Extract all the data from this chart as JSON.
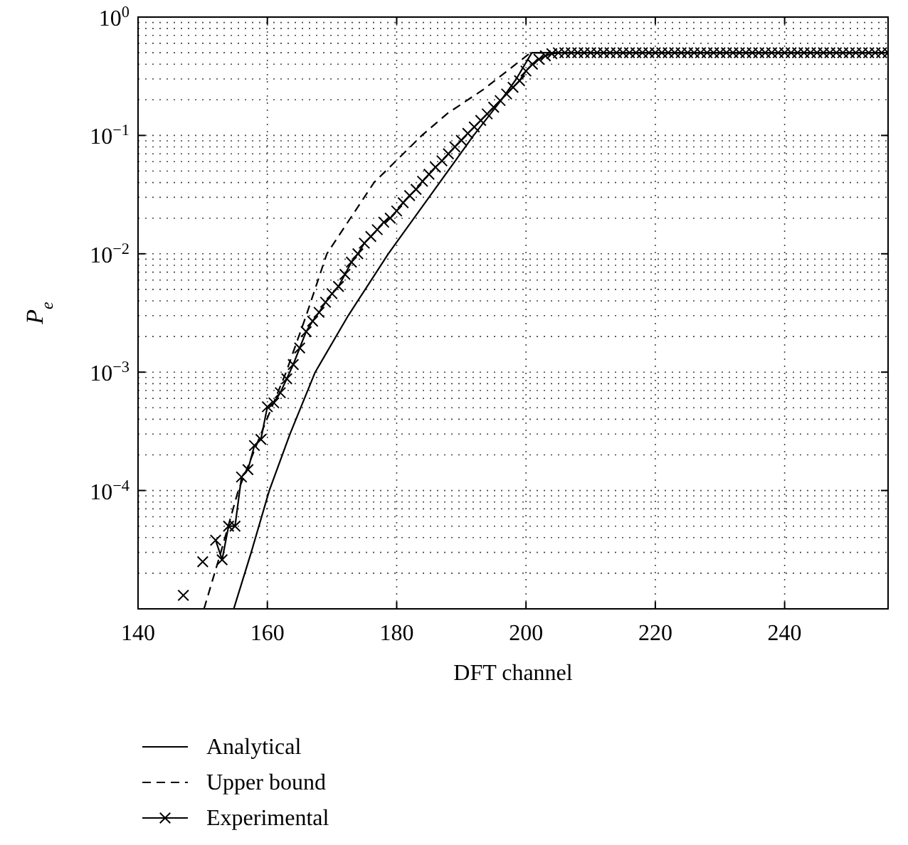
{
  "chart_data": {
    "type": "line",
    "xlabel": "DFT channel",
    "ylabel": "P$_{e}$",
    "log": "y",
    "grid": true,
    "legend": "bottom",
    "xlim": [
      140,
      256
    ],
    "xticks": [
      140,
      160,
      180,
      200,
      220,
      240
    ],
    "ylim": [
      1e-05,
      1
    ],
    "yticks": [
      {
        "value": 0.0001,
        "label": "10$^{−4}$"
      },
      {
        "value": 0.001,
        "label": "10$^{−3}$"
      },
      {
        "value": 0.01,
        "label": "10$^{−2}$"
      },
      {
        "value": 0.1,
        "label": "10$^{−1}$"
      },
      {
        "value": 1,
        "label": "10$^{0}$"
      }
    ],
    "series": [
      {
        "name": "Analytical",
        "color": "#000000",
        "line_style": "solid",
        "marker": "none",
        "x": [
          154.8,
          157.5,
          160.3,
          163.5,
          167.4,
          172.5,
          178.7,
          185.0,
          191.9,
          196.2,
          198.5,
          200.9,
          256
        ],
        "values": [
          1e-05,
          3e-05,
          0.0001,
          0.0003,
          0.001,
          0.003,
          0.01,
          0.03,
          0.1,
          0.2,
          0.3,
          0.5,
          0.5
        ]
      },
      {
        "name": "Upper bound",
        "color": "#000000",
        "line_style": "dashed",
        "marker": "none",
        "x": [
          150.2,
          152.8,
          155.5,
          159.0,
          162.9,
          166.0,
          169.2,
          176.5,
          183.9,
          187.9,
          193.4,
          200.7,
          256
        ],
        "values": [
          1e-05,
          3e-05,
          0.0001,
          0.0003,
          0.001,
          0.003,
          0.01,
          0.04,
          0.1,
          0.154,
          0.244,
          0.5,
          0.5
        ]
      },
      {
        "name": "Experimental",
        "color": "#000000",
        "line_style": "solid",
        "marker": "cross",
        "x": [
          147,
          148,
          149,
          150,
          151,
          152,
          153,
          154,
          155,
          156,
          157,
          158,
          159,
          160,
          161,
          162,
          163,
          164,
          165,
          166,
          167,
          168,
          169,
          170,
          171,
          172,
          173,
          174,
          175,
          176,
          177,
          178,
          179,
          180,
          181,
          182,
          183,
          184,
          185,
          186,
          187,
          188,
          189,
          190,
          191,
          192,
          193,
          194,
          195,
          196,
          197,
          198,
          199,
          200,
          201,
          202,
          203,
          204,
          205,
          206,
          207,
          208,
          209,
          210,
          211,
          212,
          213,
          214,
          215,
          216,
          217,
          218,
          219,
          220,
          221,
          222,
          223,
          224,
          225,
          226,
          227,
          228,
          229,
          230,
          231,
          232,
          233,
          234,
          235,
          236,
          237,
          238,
          239,
          240,
          241,
          242,
          243,
          244,
          245,
          246,
          247,
          248,
          249,
          250,
          251,
          252,
          253,
          254,
          255,
          256
        ],
        "values": [
          1.3e-05,
          null,
          null,
          2.5e-05,
          null,
          3.8e-05,
          2.6e-05,
          5e-05,
          5e-05,
          0.00013,
          0.00015,
          0.00024,
          0.00027,
          0.00051,
          0.00055,
          0.00067,
          0.00088,
          0.00116,
          0.0016,
          0.0022,
          0.0027,
          0.0032,
          0.0039,
          0.0046,
          0.0053,
          0.0067,
          0.0085,
          0.01,
          0.0123,
          0.014,
          0.016,
          0.0185,
          0.02,
          0.023,
          0.027,
          0.031,
          0.035,
          0.041,
          0.047,
          0.054,
          0.061,
          0.07,
          0.08,
          0.091,
          0.104,
          0.118,
          0.134,
          0.152,
          0.173,
          0.197,
          0.224,
          0.255,
          0.29,
          0.35,
          0.4,
          0.44,
          0.47,
          0.49,
          0.5,
          0.5,
          0.5,
          0.5,
          0.5,
          0.5,
          0.5,
          0.5,
          0.5,
          0.5,
          0.5,
          0.5,
          0.5,
          0.5,
          0.5,
          0.5,
          0.5,
          0.5,
          0.5,
          0.5,
          0.5,
          0.5,
          0.5,
          0.5,
          0.5,
          0.5,
          0.5,
          0.5,
          0.5,
          0.5,
          0.5,
          0.5,
          0.5,
          0.5,
          0.5,
          0.5,
          0.5,
          0.5,
          0.5,
          0.5,
          0.5,
          0.5,
          0.5,
          0.5,
          0.5,
          0.5,
          0.5,
          0.5,
          0.5,
          0.5,
          0.5,
          0.5
        ]
      }
    ]
  }
}
